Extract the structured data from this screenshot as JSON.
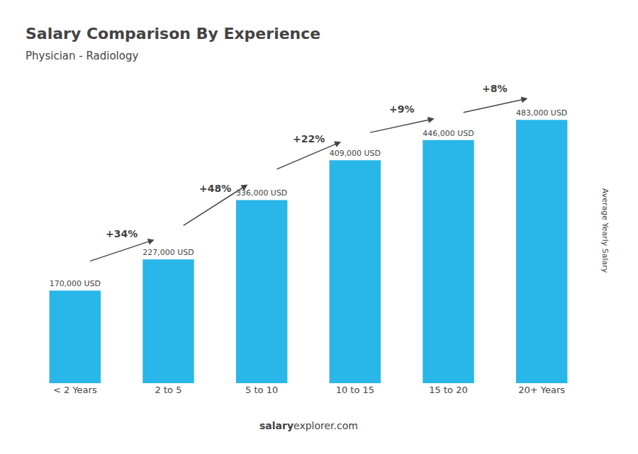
{
  "chart_data": {
    "type": "bar",
    "title": "Salary Comparison By Experience",
    "subtitle": "Physician - Radiology",
    "categories": [
      "< 2 Years",
      "2 to 5",
      "5 to 10",
      "10 to 15",
      "15 to 20",
      "20+ Years"
    ],
    "values": [
      170000,
      227000,
      336000,
      409000,
      446000,
      483000
    ],
    "value_labels": [
      "170,000 USD",
      "227,000 USD",
      "336,000 USD",
      "409,000 USD",
      "446,000 USD",
      "483,000 USD"
    ],
    "data_labels": true,
    "annotations": [
      "+34%",
      "+48%",
      "+22%",
      "+9%",
      "+8%"
    ],
    "side_label": "Average Yearly Salary",
    "watermark": [
      "salary",
      "explorer.com"
    ],
    "color": "#29b6e8",
    "ylim": [
      0,
      560000
    ],
    "tick_labels": "x",
    "grid": false
  }
}
